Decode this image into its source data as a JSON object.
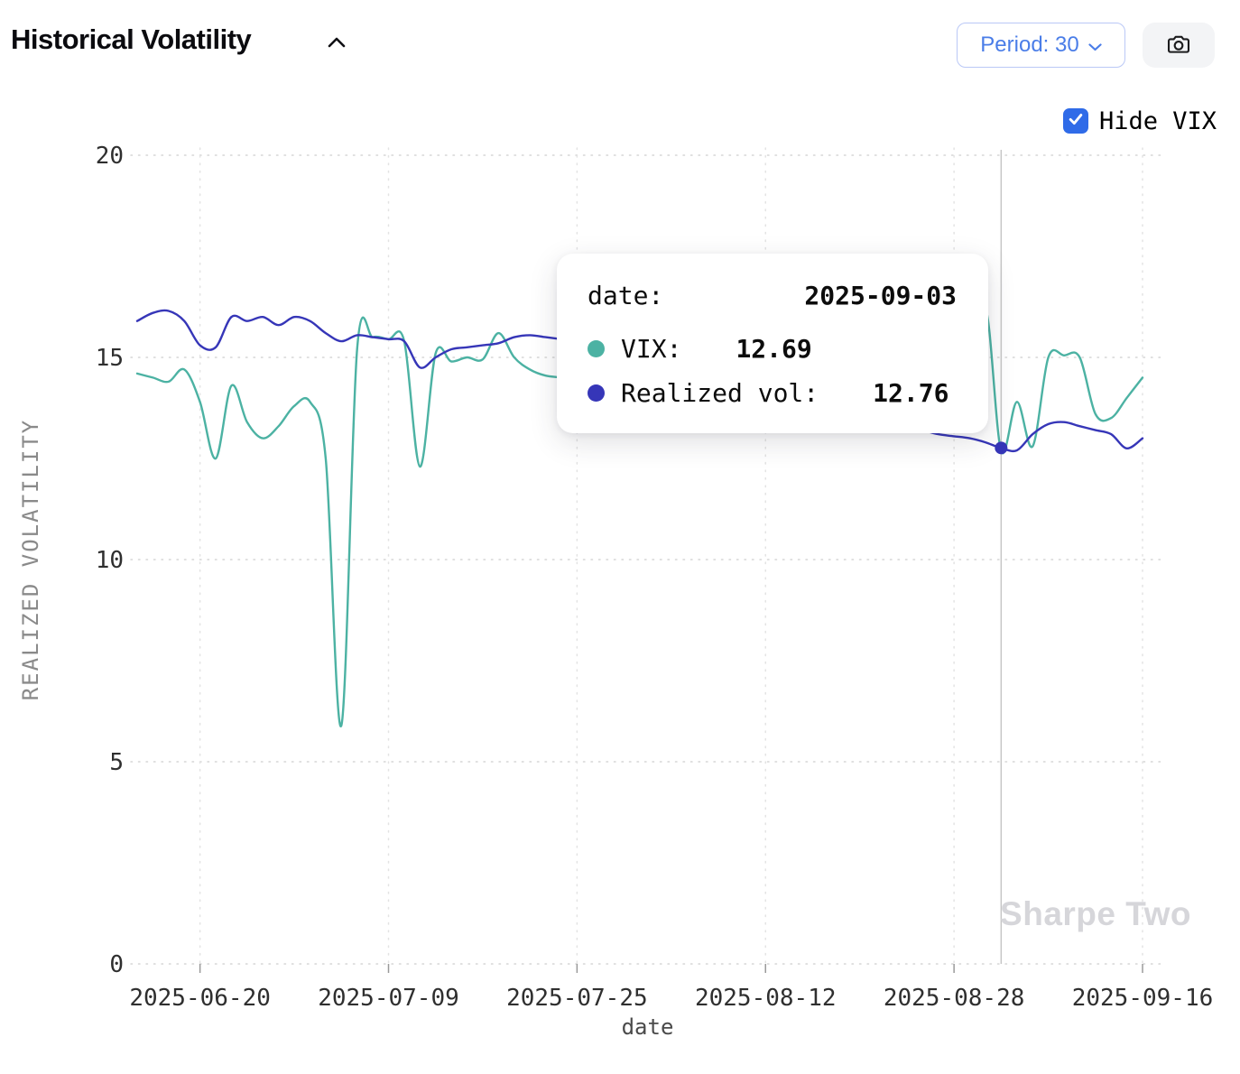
{
  "header": {
    "title": "Historical Volatility",
    "collapse_icon": "chevron-up",
    "period_button": {
      "label": "Period: 30"
    },
    "camera_button": {
      "icon": "camera"
    }
  },
  "controls": {
    "hide_vix": {
      "label": "Hide VIX",
      "checked": true
    }
  },
  "tooltip": {
    "date_label": "date:",
    "date_value": "2025-09-03",
    "rows": [
      {
        "series": "VIX",
        "label": "VIX:",
        "value": "12.69"
      },
      {
        "series": "Realized vol",
        "label": "Realized vol:",
        "value": "12.76"
      }
    ]
  },
  "watermark": "Sharpe Two",
  "colors": {
    "vix_line": "#4cb2a3",
    "realized_line": "#3636b8",
    "accent_blue": "#2f6be8",
    "crosshair": "#c6c6c6"
  },
  "chart_data": {
    "type": "line",
    "title": "Historical Volatility",
    "xlabel": "date",
    "ylabel": "REALIZED VOLATILITY",
    "ylim": [
      0,
      20
    ],
    "yticks": [
      0,
      5,
      10,
      15,
      20
    ],
    "grid": true,
    "legend_position": "none",
    "x_tick_labels": [
      "2025-06-20",
      "2025-07-09",
      "2025-07-25",
      "2025-08-12",
      "2025-08-28",
      "2025-09-16"
    ],
    "x_tick_indices": [
      4,
      16,
      28,
      40,
      52,
      64
    ],
    "n_points": 65,
    "crosshair_index": 55,
    "crosshair_date": "2025-09-03",
    "marker": {
      "index": 55,
      "value": 12.76,
      "series": "Realized vol"
    },
    "series": [
      {
        "name": "VIX",
        "color": "#4cb2a3",
        "values": [
          14.6,
          14.5,
          14.4,
          14.7,
          13.9,
          12.5,
          14.3,
          13.4,
          13.0,
          13.3,
          13.8,
          13.9,
          12.5,
          5.9,
          15.2,
          15.5,
          15.45,
          15.4,
          12.3,
          15.1,
          14.9,
          15.0,
          14.95,
          15.6,
          15.0,
          14.7,
          14.55,
          14.5,
          14.4,
          14.35,
          14.3,
          14.25,
          14.2,
          14.1,
          14.05,
          14.0,
          13.95,
          13.9,
          13.85,
          13.8,
          13.75,
          13.7,
          13.65,
          13.6,
          13.55,
          13.5,
          13.45,
          13.4,
          13.35,
          13.3,
          13.3,
          13.25,
          13.3,
          13.4,
          16.2,
          12.69,
          13.9,
          12.8,
          15.0,
          15.05,
          15.0,
          13.6,
          13.5,
          14.0,
          14.5
        ]
      },
      {
        "name": "Realized vol",
        "color": "#3636b8",
        "values": [
          15.9,
          16.1,
          16.15,
          15.9,
          15.3,
          15.25,
          16.0,
          15.9,
          16.0,
          15.8,
          16.0,
          15.9,
          15.6,
          15.4,
          15.55,
          15.5,
          15.45,
          15.4,
          14.75,
          15.0,
          15.2,
          15.25,
          15.3,
          15.35,
          15.5,
          15.55,
          15.5,
          15.45,
          15.4,
          15.3,
          15.2,
          15.1,
          15.0,
          14.9,
          14.8,
          14.7,
          14.6,
          14.5,
          14.4,
          14.3,
          14.2,
          14.1,
          14.0,
          13.9,
          13.8,
          13.7,
          13.6,
          13.5,
          13.4,
          13.3,
          13.2,
          13.1,
          13.05,
          13.0,
          12.9,
          12.76,
          12.7,
          13.1,
          13.35,
          13.4,
          13.3,
          13.2,
          13.1,
          12.75,
          13.0
        ]
      }
    ]
  }
}
